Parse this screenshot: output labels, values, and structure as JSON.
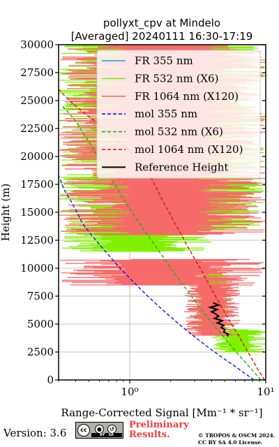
{
  "chart_data": {
    "type": "line",
    "title": "pollyxt_cpv at Mindelo",
    "subtitle": "[Averaged] 20240111 16:30-17:19",
    "xlabel": "Range-Corrected Signal [Mm⁻¹ * sr⁻¹]",
    "ylabel": "Height (m)",
    "xscale": "log",
    "xlim": [
      0.3,
      10
    ],
    "ylim": [
      0,
      30000
    ],
    "x_ticks": [
      {
        "value": 1,
        "label": "10⁰"
      },
      {
        "value": 10,
        "label": "10¹"
      }
    ],
    "y_ticks": [
      0,
      2500,
      5000,
      7500,
      10000,
      12500,
      15000,
      17500,
      20000,
      22500,
      25000,
      27500,
      30000
    ],
    "grid": true,
    "legend_position": "upper-right",
    "series": [
      {
        "name": "FR 355 nm",
        "color": "#1f9ad8",
        "style": "solid",
        "points": []
      },
      {
        "name": "FR 532 nm (X6)",
        "color": "#80f000",
        "style": "solid",
        "segments": [
          {
            "y_min": 13500,
            "y_max": 30000,
            "x_min": 0.3,
            "x_max": 10
          },
          {
            "y_min": 11500,
            "y_max": 13500,
            "x_min": 0.3,
            "x_max": 4
          },
          {
            "y_min": 4500,
            "y_max": 9500,
            "x_min": 3.0,
            "x_max": 5.5
          },
          {
            "y_min": 2500,
            "y_max": 4500,
            "x_min": 4.0,
            "x_max": 10
          }
        ]
      },
      {
        "name": "FR 1064 nm (X120)",
        "color": "#f76a6a",
        "style": "solid",
        "segments": [
          {
            "y_min": 13000,
            "y_max": 30000,
            "x_min": 0.3,
            "x_max": 10
          },
          {
            "y_min": 8500,
            "y_max": 10800,
            "x_min": 0.3,
            "x_max": 10
          },
          {
            "y_min": 4000,
            "y_max": 8500,
            "x_min": 2.5,
            "x_max": 6.5
          }
        ]
      },
      {
        "name": "mol 355 nm",
        "color": "#1414e6",
        "style": "dashed",
        "points": [
          [
            8.2,
            0
          ],
          [
            6.3,
            1000
          ],
          [
            4.8,
            2000
          ],
          [
            3.7,
            3000
          ],
          [
            2.9,
            4000
          ],
          [
            2.3,
            5000
          ],
          [
            1.85,
            6000
          ],
          [
            1.5,
            7000
          ],
          [
            1.23,
            8000
          ],
          [
            1.02,
            9000
          ],
          [
            0.85,
            10000
          ],
          [
            0.72,
            11000
          ],
          [
            0.61,
            12000
          ],
          [
            0.52,
            13000
          ],
          [
            0.45,
            14000
          ],
          [
            0.41,
            15000
          ],
          [
            0.37,
            16000
          ],
          [
            0.33,
            17000
          ],
          [
            0.3,
            18300
          ]
        ]
      },
      {
        "name": "mol 532 nm (X6)",
        "color": "#14b414",
        "style": "dashed",
        "points": [
          [
            9.2,
            0
          ],
          [
            7.8,
            1000
          ],
          [
            6.6,
            2000
          ],
          [
            5.6,
            3000
          ],
          [
            4.8,
            4000
          ],
          [
            4.1,
            5000
          ],
          [
            3.5,
            6000
          ],
          [
            3.05,
            7000
          ],
          [
            2.65,
            8000
          ],
          [
            2.3,
            9000
          ],
          [
            2.0,
            10000
          ],
          [
            1.76,
            11000
          ],
          [
            1.54,
            12000
          ],
          [
            1.35,
            13000
          ],
          [
            1.18,
            14000
          ],
          [
            1.04,
            15000
          ],
          [
            0.92,
            16000
          ],
          [
            0.82,
            17000
          ],
          [
            0.73,
            18000
          ],
          [
            0.65,
            19000
          ],
          [
            0.58,
            20000
          ],
          [
            0.52,
            21000
          ],
          [
            0.46,
            22000
          ],
          [
            0.41,
            23000
          ],
          [
            0.35,
            24000
          ],
          [
            0.32,
            24500
          ]
        ]
      },
      {
        "name": "mol 1064 nm (X120)",
        "color": "#d21414",
        "style": "dashed",
        "points": [
          [
            9.8,
            0
          ],
          [
            8.7,
            1000
          ],
          [
            7.8,
            2000
          ],
          [
            7.0,
            3000
          ],
          [
            6.3,
            4000
          ],
          [
            5.6,
            5000
          ],
          [
            5.0,
            6000
          ],
          [
            4.5,
            7000
          ],
          [
            4.05,
            8000
          ],
          [
            3.65,
            9000
          ],
          [
            3.3,
            10000
          ],
          [
            2.95,
            11000
          ],
          [
            2.65,
            12000
          ],
          [
            2.4,
            13000
          ],
          [
            2.15,
            14000
          ],
          [
            1.95,
            15000
          ],
          [
            1.75,
            16000
          ],
          [
            1.6,
            17000
          ],
          [
            1.45,
            18000
          ],
          [
            1.3,
            19000
          ],
          [
            1.1,
            20000
          ],
          [
            0.9,
            21000
          ],
          [
            0.72,
            22000
          ],
          [
            0.58,
            23000
          ],
          [
            0.45,
            24000
          ],
          [
            0.36,
            25000
          ],
          [
            0.3,
            26000
          ]
        ]
      },
      {
        "name": "Reference Height",
        "color": "#000000",
        "style": "solid",
        "points": [
          [
            4.1,
            6900
          ],
          [
            4.5,
            6700
          ],
          [
            3.9,
            6500
          ],
          [
            4.4,
            6300
          ],
          [
            4.0,
            6100
          ],
          [
            4.3,
            5900
          ],
          [
            4.5,
            5700
          ],
          [
            4.2,
            5500
          ],
          [
            4.8,
            5300
          ],
          [
            4.4,
            5100
          ],
          [
            4.9,
            4900
          ],
          [
            4.7,
            4700
          ],
          [
            5.0,
            4500
          ],
          [
            4.9,
            4300
          ],
          [
            5.3,
            4100
          ],
          [
            5.2,
            3900
          ]
        ]
      }
    ]
  },
  "footer": {
    "version": "Version: 3.6",
    "license_badge": {
      "by": "BY",
      "sa": "SA"
    },
    "preliminary": [
      "Preliminary",
      "Results."
    ],
    "copyright": [
      "© TROPOS & OSCM 2024.",
      "CC BY SA 4.0 License."
    ]
  }
}
